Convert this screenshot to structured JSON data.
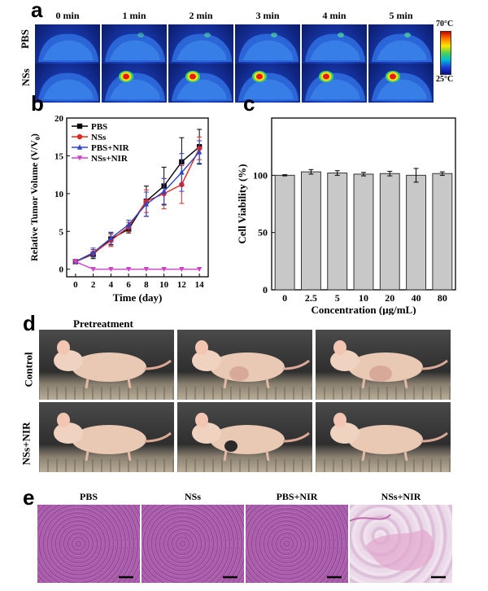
{
  "panel_a": {
    "letter": "a",
    "times": [
      "0 min",
      "1 min",
      "2 min",
      "3 min",
      "4 min",
      "5 min"
    ],
    "rows": [
      "PBS",
      "NSs"
    ],
    "scale_max": "70°C",
    "scale_min": "25°C",
    "hotspot_intensity": {
      "PBS": [
        0,
        0.05,
        0.08,
        0.1,
        0.12,
        0.12
      ],
      "NSs": [
        0,
        0.85,
        0.95,
        1.0,
        1.0,
        1.0
      ]
    }
  },
  "panel_d": {
    "letter": "d",
    "title": "Pretreatment",
    "rows": [
      "Control",
      "NSs+NIR"
    ]
  },
  "panel_e": {
    "letter": "e",
    "labels": [
      "PBS",
      "NSs",
      "PBS+NIR",
      "NSs+NIR"
    ]
  },
  "chart_data": [
    {
      "panel": "b",
      "type": "line",
      "xlabel": "Time (day)",
      "ylabel": "Relative Tumor Volume (V/V",
      "ylabel_sub": "0",
      "ylabel_end": ")",
      "xlim": [
        -1,
        15
      ],
      "ylim": [
        -1,
        20
      ],
      "xticks": [
        0,
        2,
        4,
        6,
        8,
        10,
        12,
        14
      ],
      "yticks": [
        0,
        5,
        10,
        15,
        20
      ],
      "x": [
        0,
        2,
        4,
        6,
        8,
        10,
        12,
        14
      ],
      "legend_position": "top-left",
      "series": [
        {
          "name": "PBS",
          "color": "#000000",
          "marker": "square",
          "values": [
            1,
            2.0,
            4.0,
            5.3,
            9.0,
            11.0,
            14.2,
            16.2
          ],
          "errors": [
            0.1,
            0.6,
            0.8,
            0.5,
            2.0,
            2.5,
            3.2,
            2.3
          ]
        },
        {
          "name": "NSs",
          "color": "#e8261f",
          "marker": "circle",
          "values": [
            1,
            2.1,
            3.8,
            5.6,
            9.0,
            10.0,
            11.2,
            16.0
          ],
          "errors": [
            0.1,
            0.5,
            0.8,
            0.6,
            1.5,
            2.0,
            2.5,
            1.5
          ]
        },
        {
          "name": "PBS+NIR",
          "color": "#2b46c8",
          "marker": "triangle",
          "values": [
            1,
            2.2,
            4.1,
            5.9,
            8.6,
            10.3,
            12.8,
            15.5
          ],
          "errors": [
            0.1,
            0.6,
            0.8,
            0.6,
            1.6,
            1.7,
            2.5,
            1.5
          ]
        },
        {
          "name": "NSs+NIR",
          "color": "#d040c8",
          "marker": "triangle-down",
          "values": [
            1,
            0,
            0,
            0,
            0,
            0,
            0,
            0
          ],
          "errors": [
            0,
            0,
            0,
            0,
            0,
            0,
            0,
            0
          ]
        }
      ]
    },
    {
      "panel": "c",
      "type": "bar",
      "xlabel": "Concentration  (μg/mL)",
      "ylabel": "Cell Viability (%)",
      "ylim": [
        0,
        150
      ],
      "yticks": [
        0,
        50,
        100
      ],
      "categories": [
        "0",
        "2.5",
        "5",
        "10",
        "20",
        "40",
        "80"
      ],
      "values": [
        100,
        103,
        102,
        101,
        101.5,
        100,
        101.5
      ],
      "errors": [
        0.5,
        2,
        2,
        1.5,
        2,
        6,
        1.5
      ],
      "bar_color": "#c8c8c8"
    }
  ]
}
